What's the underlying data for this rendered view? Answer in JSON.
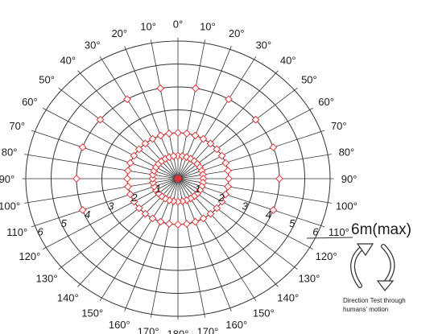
{
  "diagram": {
    "angle_labels_right": [
      "0°",
      "10°",
      "20°",
      "30°",
      "40°",
      "50°",
      "60°",
      "70°",
      "80°",
      "90°",
      "100°",
      "110°",
      "120°",
      "130°",
      "140°",
      "150°",
      "160°",
      "170°",
      "180°"
    ],
    "angle_labels_left": [
      "10°",
      "20°",
      "30°",
      "40°",
      "50°",
      "60°",
      "70°",
      "80°",
      "90°",
      "100°",
      "110°",
      "120°",
      "130°",
      "140°",
      "150°",
      "160°",
      "170°"
    ],
    "distance_labels": [
      "1",
      "2",
      "3",
      "4",
      "5",
      "6"
    ],
    "range_label": "6m(max)",
    "caption": [
      "Direction Test through",
      "humans' motion"
    ],
    "colors": {
      "grid": "#333333",
      "detection": "#e0343a",
      "text": "#1a1a1a"
    },
    "detection_zones": {
      "inner_radius_m": 1,
      "middle_radius_m": 2,
      "outer_radius_m": 4,
      "outer_angle_span_deg": 220
    },
    "icon": "curved-arrows-icon"
  }
}
